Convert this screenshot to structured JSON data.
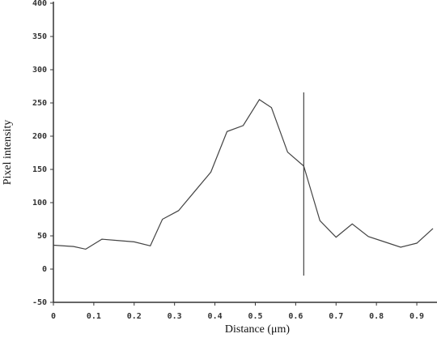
{
  "chart_data": {
    "type": "line",
    "x_label": "Distance (μm)",
    "y_label": "Pixel intensity",
    "x": [
      0.0,
      0.05,
      0.08,
      0.12,
      0.16,
      0.2,
      0.24,
      0.27,
      0.31,
      0.35,
      0.39,
      0.43,
      0.47,
      0.51,
      0.54,
      0.58,
      0.62,
      0.66,
      0.7,
      0.74,
      0.78,
      0.82,
      0.86,
      0.9,
      0.94
    ],
    "series": [
      {
        "color": "#444444",
        "values": [
          36,
          34,
          30,
          45,
          43,
          41,
          35,
          75,
          88,
          117,
          146,
          207,
          216,
          255,
          243,
          176,
          155,
          73,
          48,
          68,
          49,
          41,
          33,
          39,
          61
        ]
      }
    ],
    "marker_x": 0.62,
    "xlim": [
      0,
      0.95
    ],
    "xticks": [
      0,
      0.1,
      0.2,
      0.3,
      0.4,
      0.5,
      0.6,
      0.7,
      0.8,
      0.9
    ],
    "ylim": [
      -50,
      400
    ],
    "yticks": [
      -50,
      0,
      50,
      100,
      150,
      200,
      250,
      300,
      350,
      400
    ]
  }
}
